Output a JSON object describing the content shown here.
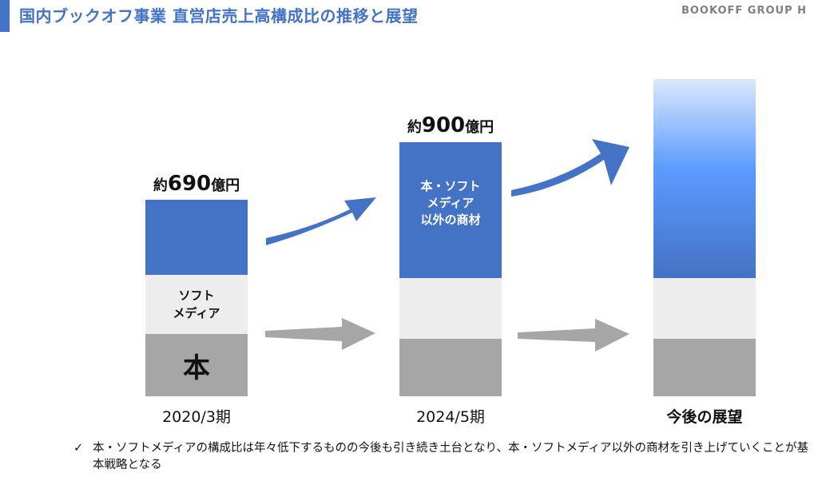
{
  "header": {
    "title": "国内ブックオフ事業 直営店売上高構成比の推移と展望",
    "brand": "BOOKOFF GROUP H",
    "accent_color": "#4472c4"
  },
  "chart_data": {
    "type": "bar",
    "stacked": true,
    "categories": [
      "2020/3期",
      "2024/5期",
      "今後の展望"
    ],
    "series": [
      {
        "name": "本",
        "color": "#a6a6a6"
      },
      {
        "name": "ソフトメディア",
        "color": "#ededed"
      },
      {
        "name": "本・ソフトメディア以外の商材",
        "color": "#4472c4"
      }
    ],
    "totals": [
      {
        "prefix": "約",
        "value": "690",
        "unit": "億円"
      },
      {
        "prefix": "約",
        "value": "900",
        "unit": "億円"
      },
      null
    ],
    "segment_labels": {
      "book": "本",
      "soft_line1": "ソフト",
      "soft_line2": "メディア",
      "other_line1": "本・ソフト",
      "other_line2": "メディア",
      "other_line3": "以外の商材"
    },
    "projection_gradient": [
      "#dbe8fb",
      "#5b9bff",
      "#4472c4"
    ],
    "arrows": [
      {
        "from": "2020/3期",
        "to": "2024/5期",
        "segment": "本・ソフトメディア以外の商材",
        "direction": "up"
      },
      {
        "from": "2020/3期",
        "to": "2024/5期",
        "segment": "本・ソフトメディア",
        "direction": "flat"
      },
      {
        "from": "2024/5期",
        "to": "今後の展望",
        "segment": "本・ソフトメディア以外の商材",
        "direction": "up"
      },
      {
        "from": "2024/5期",
        "to": "今後の展望",
        "segment": "本・ソフトメディア",
        "direction": "flat"
      }
    ],
    "arrow_colors": {
      "up": "#4472c4",
      "flat": "#a6a6a6"
    }
  },
  "footnote": {
    "check": "✓",
    "text": "本・ソフトメディアの構成比は年々低下するものの今後も引き続き土台となり、本・ソフトメディア以外の商材を引き上げていくことが基本戦略となる"
  }
}
